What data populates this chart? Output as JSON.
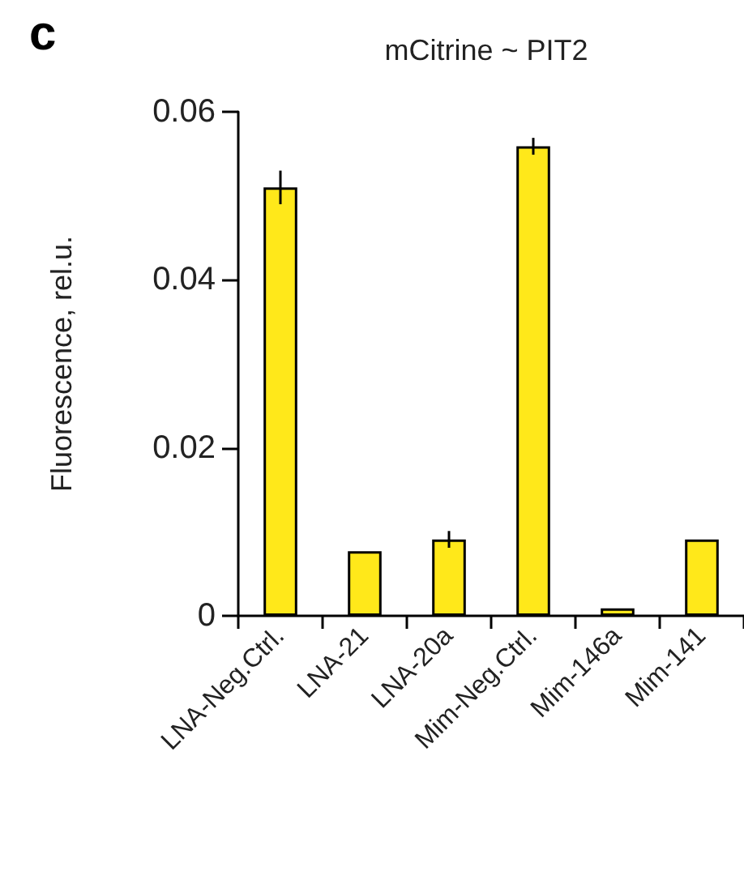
{
  "chart_data": {
    "type": "bar",
    "title": "mCitrine ~ PIT2",
    "ylabel": "Fluorescence, rel.u.",
    "annotations": [
      "c"
    ],
    "categories": [
      "LNA-Neg.Ctrl.",
      "LNA-21",
      "LNA-20a",
      "Mim-Neg.Ctrl.",
      "Mim-146a",
      "Mim-141"
    ],
    "values": [
      0.051,
      0.0077,
      0.0091,
      0.0559,
      0.0009,
      0.0091
    ],
    "errors": [
      0.002,
      null,
      0.001,
      0.001,
      null,
      null
    ],
    "color": "#ffe81a",
    "ylim": [
      0,
      0.06
    ],
    "yticks": [
      0,
      0.02,
      0.04,
      0.06
    ],
    "grid": false
  }
}
